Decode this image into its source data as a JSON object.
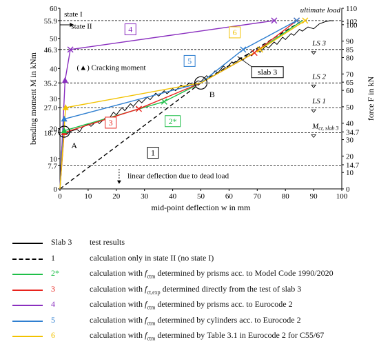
{
  "chart_data": {
    "type": "line",
    "xlabel": "mid-point deflection w in mm",
    "ylabel_left": "bending moment M in kNm",
    "ylabel_right": "force F in kN",
    "xlim": [
      0,
      100
    ],
    "ylim_left": [
      0,
      60
    ],
    "ylim_right": [
      0,
      110
    ],
    "x_ticks": [
      "0",
      "10",
      "20",
      "30",
      "40",
      "50",
      "60",
      "70",
      "80",
      "90",
      "100"
    ],
    "y_ticks_left": [
      {
        "value": 0,
        "label": "0"
      },
      {
        "value": 7.7,
        "label": "7.7"
      },
      {
        "value": 10,
        "label": "10"
      },
      {
        "value": 18.7,
        "label": "18.7"
      },
      {
        "value": 20,
        "label": "20"
      },
      {
        "value": 27.0,
        "label": "27.0"
      },
      {
        "value": 30,
        "label": "30"
      },
      {
        "value": 35.2,
        "label": "35.2"
      },
      {
        "value": 40,
        "label": "40"
      },
      {
        "value": 46.3,
        "label": "46.3"
      },
      {
        "value": 50,
        "label": "50"
      },
      {
        "value": 55.9,
        "label": "55.9"
      },
      {
        "value": 60,
        "label": "60"
      }
    ],
    "y_ticks_right": [
      {
        "value": 0,
        "label": "0"
      },
      {
        "value": 10,
        "label": "10"
      },
      {
        "value": 14.7,
        "label": "14.7"
      },
      {
        "value": 20,
        "label": "20"
      },
      {
        "value": 30,
        "label": "30"
      },
      {
        "value": 34.7,
        "label": "34.7"
      },
      {
        "value": 40,
        "label": "40"
      },
      {
        "value": 50,
        "label": "50"
      },
      {
        "value": 60,
        "label": "60"
      },
      {
        "value": 65,
        "label": "65"
      },
      {
        "value": 70,
        "label": "70"
      },
      {
        "value": 80,
        "label": "80"
      },
      {
        "value": 85,
        "label": "85"
      },
      {
        "value": 90,
        "label": "90"
      },
      {
        "value": 100,
        "label": "100"
      },
      {
        "value": 102,
        "label": "102"
      },
      {
        "value": 110,
        "label": "110"
      }
    ],
    "dashed_levels": [
      55.9,
      46.3,
      35.2,
      27.0,
      18.7,
      7.7
    ],
    "level_labels": [
      {
        "text": "ultimate load",
        "y": 55.9
      },
      {
        "text": "LS 3",
        "y": 46.3
      },
      {
        "text": "LS 2",
        "y": 35.2
      },
      {
        "text": "LS 1",
        "y": 27.0
      },
      {
        "text": "M",
        "sub": "cr, slab 3",
        "y": 18.7
      }
    ],
    "annotations": {
      "state1": "state I",
      "state2": "state II",
      "cracking": "(▲) Cracking moment",
      "dead_load": "linear deflection due to dead load",
      "point_a": "A",
      "point_b": "B",
      "slab3": "slab 3"
    },
    "markers": [
      {
        "x": 1.5,
        "y": 18.7,
        "color": "#e8231d"
      },
      {
        "x": 1.5,
        "y": 19.3,
        "color": "#1fbf49"
      },
      {
        "x": 1.5,
        "y": 23.2,
        "color": "#2f7fd0"
      },
      {
        "x": 2.0,
        "y": 27.0,
        "color": "#f2c200"
      },
      {
        "x": 1.8,
        "y": 36.0,
        "color": "#8a2fbf"
      }
    ],
    "series": [
      {
        "name": "Slab 3",
        "key": "slab3",
        "color": "#000000",
        "dash": "solid",
        "points": [
          [
            0,
            0
          ],
          [
            0.5,
            12
          ],
          [
            1,
            17
          ],
          [
            1.5,
            18.9
          ],
          [
            2.5,
            18.3
          ],
          [
            4,
            19.2
          ],
          [
            6,
            19.8
          ],
          [
            7,
            19
          ],
          [
            8,
            20.5
          ],
          [
            10,
            21.5
          ],
          [
            11,
            20.8
          ],
          [
            13,
            22.5
          ],
          [
            14,
            21.7
          ],
          [
            16,
            23.5
          ],
          [
            17,
            22.8
          ],
          [
            19,
            25.5
          ],
          [
            20,
            24.6
          ],
          [
            22,
            27
          ],
          [
            23,
            26
          ],
          [
            25,
            28.3
          ],
          [
            26,
            27.4
          ],
          [
            28,
            29.5
          ],
          [
            29,
            28.6
          ],
          [
            31,
            30.5
          ],
          [
            32,
            29.6
          ],
          [
            34,
            31.8
          ],
          [
            35,
            30.8
          ],
          [
            37,
            32.6
          ],
          [
            38,
            31.6
          ],
          [
            40,
            33.3
          ],
          [
            41,
            32.6
          ],
          [
            43,
            34.5
          ],
          [
            44,
            33.8
          ],
          [
            46,
            35.2
          ],
          [
            47,
            34.6
          ],
          [
            49,
            35.9
          ],
          [
            50,
            35.6
          ],
          [
            52,
            37.6
          ],
          [
            53,
            37
          ],
          [
            55,
            39.2
          ],
          [
            56,
            38.5
          ],
          [
            58,
            40.8
          ],
          [
            59,
            40
          ],
          [
            61,
            42.2
          ],
          [
            62,
            41.5
          ],
          [
            64,
            43.6
          ],
          [
            65,
            42.8
          ],
          [
            67,
            45
          ],
          [
            68,
            44.2
          ],
          [
            70,
            46.2
          ],
          [
            71,
            45.4
          ],
          [
            73,
            47.4
          ],
          [
            74,
            46.8
          ],
          [
            76,
            48.8
          ],
          [
            77,
            48
          ],
          [
            79,
            50.4
          ],
          [
            80,
            49.6
          ],
          [
            82,
            51.6
          ],
          [
            83,
            51
          ],
          [
            85,
            53
          ],
          [
            86,
            52.4
          ],
          [
            88,
            53.8
          ],
          [
            90,
            53.2
          ],
          [
            92,
            54.8
          ],
          [
            94,
            55.5
          ],
          [
            96,
            55.9
          ],
          [
            97,
            55.8
          ]
        ]
      },
      {
        "name": "1",
        "key": "one",
        "color": "#000000",
        "dash": "dashed",
        "points": [
          [
            0,
            0
          ],
          [
            50,
            35.2
          ],
          [
            86,
            55.9
          ]
        ]
      },
      {
        "name": "2*",
        "key": "two",
        "color": "#1fbf49",
        "dash": "solid",
        "points": [
          [
            0,
            0
          ],
          [
            1.5,
            19.3
          ],
          [
            37,
            29
          ],
          [
            50,
            35.2
          ],
          [
            69,
            45.2
          ],
          [
            86,
            55.9
          ]
        ]
      },
      {
        "name": "3",
        "key": "three",
        "color": "#e8231d",
        "dash": "solid",
        "points": [
          [
            0,
            0
          ],
          [
            1.5,
            18.7
          ],
          [
            28,
            26.6
          ],
          [
            50,
            35.2
          ],
          [
            69,
            45.2
          ],
          [
            84,
            55.9
          ]
        ]
      },
      {
        "name": "4",
        "key": "four",
        "color": "#8a2fbf",
        "dash": "solid",
        "points": [
          [
            0,
            0
          ],
          [
            1.8,
            36
          ],
          [
            3.7,
            46.3
          ],
          [
            76,
            55.9
          ]
        ]
      },
      {
        "name": "5",
        "key": "five",
        "color": "#2f7fd0",
        "dash": "solid",
        "points": [
          [
            0,
            0
          ],
          [
            1.5,
            23.2
          ],
          [
            50,
            35.2
          ],
          [
            65,
            46.3
          ],
          [
            84,
            55.9
          ]
        ]
      },
      {
        "name": "6",
        "key": "six",
        "color": "#f2c200",
        "dash": "solid",
        "points": [
          [
            0,
            0
          ],
          [
            2,
            27
          ],
          [
            50,
            35.2
          ],
          [
            71,
            46.3
          ],
          [
            87,
            55.9
          ]
        ]
      }
    ],
    "cross_markers": [
      {
        "series": "three",
        "x": 28,
        "y": 26.6
      },
      {
        "series": "two",
        "x": 37,
        "y": 29
      },
      {
        "series": "four",
        "x": 3.7,
        "y": 46.3
      },
      {
        "series": "four",
        "x": 76,
        "y": 55.9
      },
      {
        "series": "five",
        "x": 65,
        "y": 46.3
      },
      {
        "series": "six",
        "x": 71,
        "y": 46.3
      },
      {
        "series": "three",
        "x": 69,
        "y": 45.2
      },
      {
        "series": "three",
        "x": 84,
        "y": 55.9
      },
      {
        "series": "six",
        "x": 87,
        "y": 55.9
      },
      {
        "series": "five",
        "x": 84,
        "y": 55.9
      }
    ],
    "series_tags": [
      {
        "text": "1",
        "color": "#000000",
        "x": 33,
        "y": 12
      },
      {
        "text": "2*",
        "color": "#1fbf49",
        "x": 40,
        "y": 22.5
      },
      {
        "text": "3",
        "color": "#e8231d",
        "x": 18,
        "y": 22
      },
      {
        "text": "4",
        "color": "#8a2fbf",
        "x": 25,
        "y": 53
      },
      {
        "text": "5",
        "color": "#2f7fd0",
        "x": 46,
        "y": 42.5
      },
      {
        "text": "6",
        "color": "#f2c200",
        "x": 62,
        "y": 52
      }
    ]
  },
  "legend": [
    {
      "key": "Slab 3",
      "color": "#000000",
      "dash": "solid",
      "pre": "test results",
      "sym": "",
      "post": ""
    },
    {
      "key": "1",
      "color": "#000000",
      "dash": "dashed",
      "pre": "calculation only in state II (no state I)",
      "sym": "",
      "post": ""
    },
    {
      "key": "2*",
      "color": "#1fbf49",
      "dash": "solid",
      "pre": "calculation with ",
      "sym": "f",
      "sub": "ctm",
      "post": " determined by prisms acc. to Model Code 1990/2020"
    },
    {
      "key": "3",
      "color": "#e8231d",
      "dash": "solid",
      "pre": "calculation with ",
      "sym": "f",
      "sub": "ct,exp",
      "post": " determined directly from the test of slab 3"
    },
    {
      "key": "4",
      "color": "#8a2fbf",
      "dash": "solid",
      "pre": "calculation with ",
      "sym": "f",
      "sub": "ctm",
      "post": " determined by prisms acc. to Eurocode 2"
    },
    {
      "key": "5",
      "color": "#2f7fd0",
      "dash": "solid",
      "pre": "calculation with ",
      "sym": "f",
      "sub": "ctm",
      "post": " determined by cylinders acc. to Eurocode 2"
    },
    {
      "key": "6",
      "color": "#f2c200",
      "dash": "solid",
      "pre": "calculation with ",
      "sym": "f",
      "sub": "ctm",
      "post": " determined by Table 3.1 in Eurocode 2 for C55/67"
    }
  ]
}
